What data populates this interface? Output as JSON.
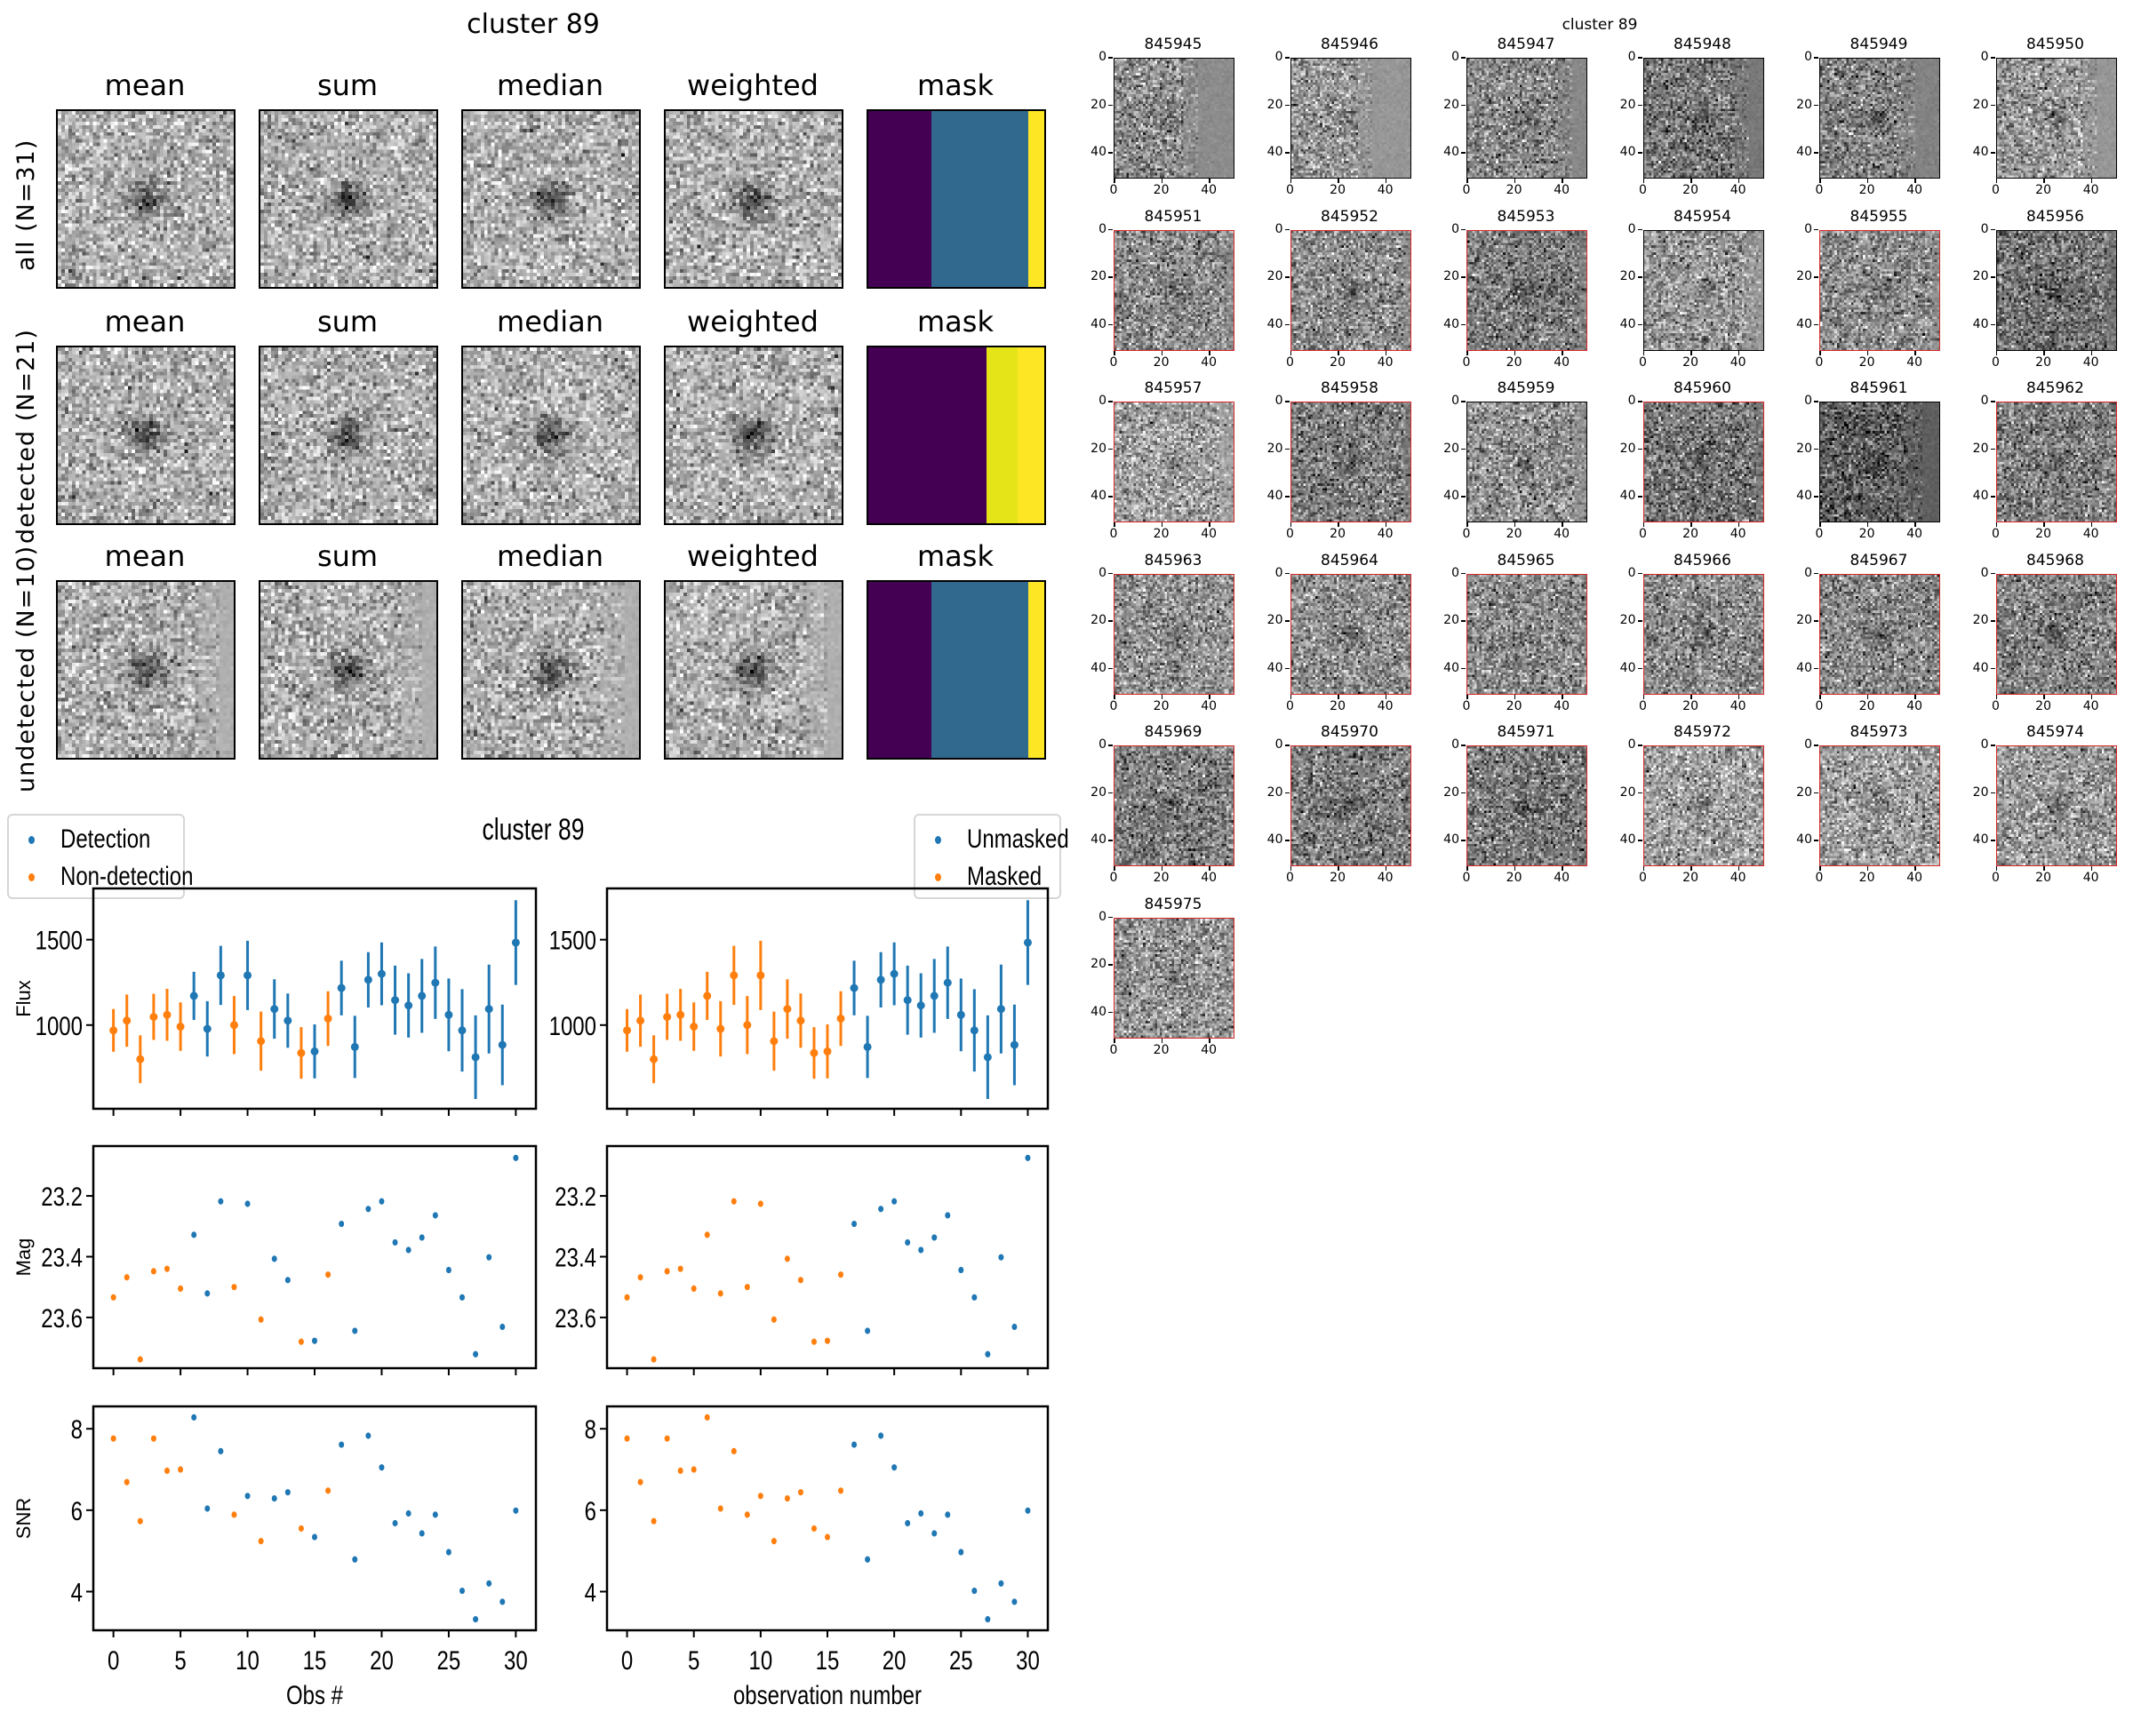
{
  "stack_figure": {
    "title": "cluster 89",
    "column_titles": [
      "mean",
      "sum",
      "median",
      "weighted",
      "mask"
    ],
    "rows": [
      {
        "label": "all (N=31)",
        "group": "all",
        "n": 31,
        "mask_segments": [
          {
            "fraction": 0.36,
            "color": "#440154"
          },
          {
            "fraction": 0.55,
            "color": "#31688e"
          },
          {
            "fraction": 0.09,
            "color": "#fde725"
          }
        ]
      },
      {
        "label": "detected (N=21)",
        "group": "detected",
        "n": 21,
        "mask_segments": [
          {
            "fraction": 0.67,
            "color": "#440154"
          },
          {
            "fraction": 0.18,
            "color": "#e5e419"
          },
          {
            "fraction": 0.15,
            "color": "#fde725"
          }
        ]
      },
      {
        "label": "undetected (N=10)",
        "group": "undetected",
        "n": 10,
        "mask_segments": [
          {
            "fraction": 0.36,
            "color": "#440154"
          },
          {
            "fraction": 0.55,
            "color": "#31688e"
          },
          {
            "fraction": 0.09,
            "color": "#fde725"
          }
        ]
      }
    ]
  },
  "lightcurve_figure": {
    "title": "cluster 89",
    "left_legend": [
      {
        "label": "Detection",
        "color": "#1f77b4"
      },
      {
        "label": "Non-detection",
        "color": "#ff7f0e"
      }
    ],
    "right_legend": [
      {
        "label": "Unmasked",
        "color": "#1f77b4"
      },
      {
        "label": "Masked",
        "color": "#ff7f0e"
      }
    ],
    "left_xlabel": "Obs #",
    "right_xlabel": "observation number"
  },
  "chart_data": [
    {
      "type": "scatter",
      "title": "cluster 89",
      "panels": [
        {
          "name": "flux",
          "ylabel": "Flux",
          "ylim": [
            510,
            1800
          ],
          "yticks": [
            1000,
            1500
          ],
          "errorbars": true
        },
        {
          "name": "mag",
          "ylabel": "Mag",
          "ylim": [
            23.767,
            23.036
          ],
          "yticks": [
            23.2,
            23.4,
            23.6
          ],
          "inverted": true
        },
        {
          "name": "snr",
          "ylabel": "SNR",
          "ylim": [
            3.05,
            8.55
          ],
          "yticks": [
            4,
            6,
            8
          ]
        }
      ],
      "xlim": [
        -1.5,
        31.5
      ],
      "xticks": [
        0,
        5,
        10,
        15,
        20,
        25,
        30
      ],
      "x": [
        0,
        1,
        2,
        3,
        4,
        5,
        6,
        7,
        8,
        9,
        10,
        11,
        12,
        13,
        14,
        15,
        16,
        17,
        18,
        19,
        20,
        21,
        22,
        23,
        24,
        25,
        26,
        27,
        28,
        29,
        30
      ],
      "flux": [
        969,
        1026,
        800,
        1048,
        1060,
        991,
        1171,
        978,
        1291,
        1000,
        1291,
        906,
        1094,
        1026,
        837,
        846,
        1038,
        1217,
        872,
        1265,
        1300,
        1146,
        1115,
        1171,
        1248,
        1060,
        969,
        812,
        1094,
        884,
        1483
      ],
      "flux_err": [
        125,
        153,
        140,
        135,
        152,
        142,
        141,
        162,
        173,
        170,
        203,
        173,
        174,
        159,
        151,
        158,
        160,
        160,
        182,
        162,
        184,
        202,
        188,
        216,
        212,
        213,
        241,
        245,
        260,
        236,
        248
      ],
      "mag": [
        23.534,
        23.468,
        23.738,
        23.448,
        23.44,
        23.505,
        23.328,
        23.521,
        23.218,
        23.5,
        23.226,
        23.607,
        23.407,
        23.477,
        23.68,
        23.677,
        23.459,
        23.292,
        23.644,
        23.243,
        23.218,
        23.353,
        23.378,
        23.337,
        23.264,
        23.444,
        23.534,
        23.721,
        23.402,
        23.631,
        23.075
      ],
      "snr": [
        7.76,
        6.69,
        5.73,
        7.76,
        6.97,
        7.0,
        8.28,
        6.04,
        7.45,
        5.89,
        6.35,
        5.24,
        6.29,
        6.44,
        5.55,
        5.34,
        6.48,
        7.61,
        4.79,
        7.83,
        7.05,
        5.68,
        5.92,
        5.43,
        5.89,
        4.97,
        4.02,
        3.32,
        4.2,
        3.75,
        5.99
      ],
      "detected": [
        false,
        false,
        false,
        false,
        false,
        false,
        true,
        true,
        true,
        false,
        true,
        false,
        true,
        true,
        false,
        true,
        false,
        true,
        true,
        true,
        true,
        true,
        true,
        true,
        true,
        true,
        true,
        true,
        true,
        true,
        true
      ],
      "masked": [
        true,
        true,
        true,
        true,
        true,
        true,
        true,
        true,
        true,
        true,
        true,
        true,
        true,
        true,
        true,
        true,
        true,
        false,
        false,
        false,
        false,
        false,
        false,
        false,
        false,
        false,
        false,
        false,
        false,
        false,
        false
      ],
      "left_series": [
        {
          "name": "Detection",
          "color": "#1f77b4",
          "key": "detected",
          "value": true
        },
        {
          "name": "Non-detection",
          "color": "#ff7f0e",
          "key": "detected",
          "value": false
        }
      ],
      "right_series": [
        {
          "name": "Unmasked",
          "color": "#1f77b4",
          "key": "masked",
          "value": false
        },
        {
          "name": "Masked",
          "color": "#ff7f0e",
          "key": "masked",
          "value": true
        }
      ],
      "left_xlabel": "Obs #",
      "right_xlabel": "observation number",
      "legend_left": "top-left",
      "legend_right": "top-right",
      "grid": false
    }
  ],
  "stamp_grid": {
    "title": "cluster 89",
    "axis_ticks": [
      "0",
      "20",
      "40"
    ],
    "stamps": [
      {
        "id": "845945",
        "detected": false
      },
      {
        "id": "845946",
        "detected": false
      },
      {
        "id": "845947",
        "detected": false
      },
      {
        "id": "845948",
        "detected": false
      },
      {
        "id": "845949",
        "detected": false
      },
      {
        "id": "845950",
        "detected": false
      },
      {
        "id": "845951",
        "detected": true
      },
      {
        "id": "845952",
        "detected": true
      },
      {
        "id": "845953",
        "detected": true
      },
      {
        "id": "845954",
        "detected": false
      },
      {
        "id": "845955",
        "detected": true
      },
      {
        "id": "845956",
        "detected": false
      },
      {
        "id": "845957",
        "detected": true
      },
      {
        "id": "845958",
        "detected": true
      },
      {
        "id": "845959",
        "detected": false
      },
      {
        "id": "845960",
        "detected": true
      },
      {
        "id": "845961",
        "detected": false
      },
      {
        "id": "845962",
        "detected": true
      },
      {
        "id": "845963",
        "detected": true
      },
      {
        "id": "845964",
        "detected": true
      },
      {
        "id": "845965",
        "detected": true
      },
      {
        "id": "845966",
        "detected": true
      },
      {
        "id": "845967",
        "detected": true
      },
      {
        "id": "845968",
        "detected": true
      },
      {
        "id": "845969",
        "detected": true
      },
      {
        "id": "845970",
        "detected": true
      },
      {
        "id": "845971",
        "detected": true
      },
      {
        "id": "845972",
        "detected": true
      },
      {
        "id": "845973",
        "detected": true
      },
      {
        "id": "845974",
        "detected": true
      },
      {
        "id": "845975",
        "detected": true
      }
    ],
    "detected_border_color": "#d62728",
    "default_border_color": "#000000"
  }
}
